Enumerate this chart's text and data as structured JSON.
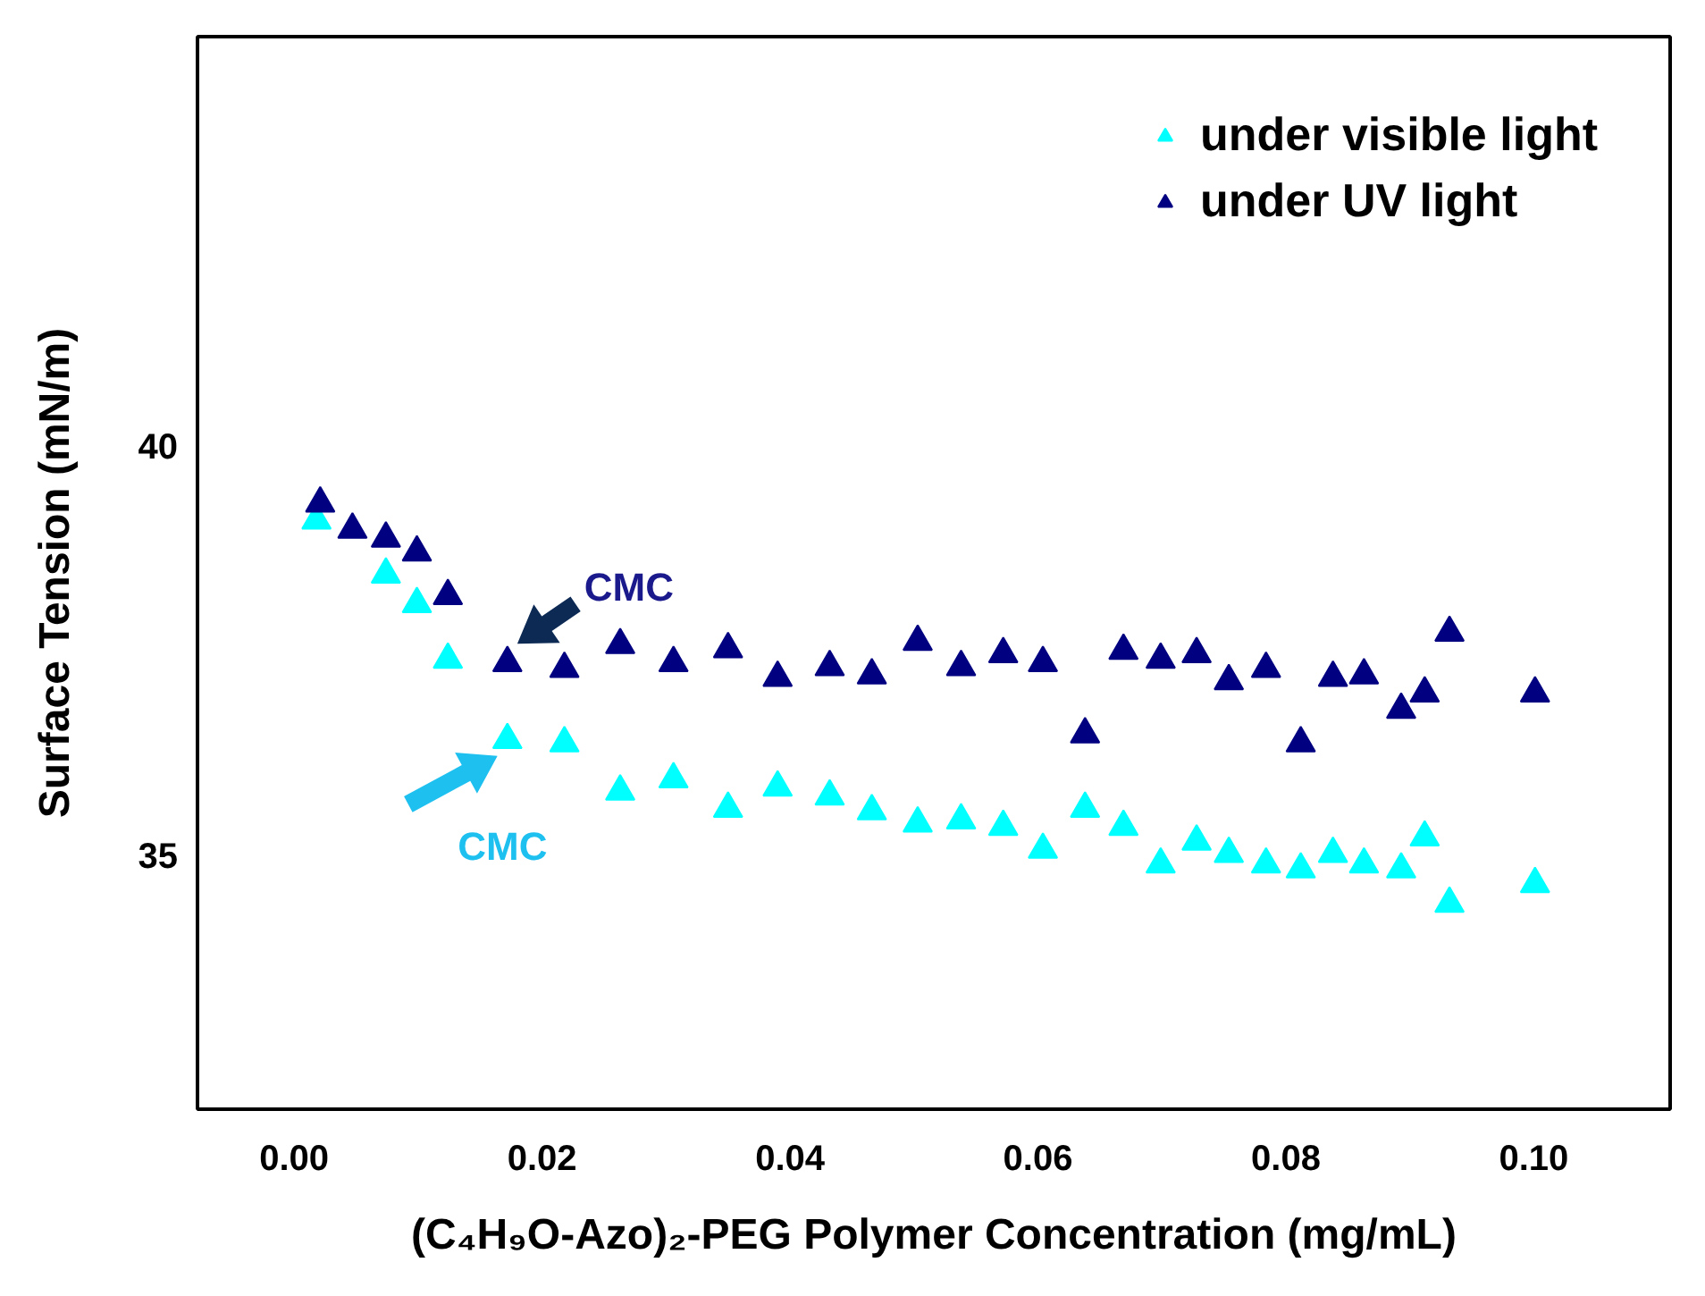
{
  "chart_data": {
    "type": "scatter",
    "xlabel": "(C₄H₉O-Azo)₂-PEG Polymer Concentration (mg/mL)",
    "ylabel": "Surface Tension (mN/m)",
    "xlim": [
      -0.0078,
      0.111
    ],
    "ylim": [
      31.9,
      45
    ],
    "xticks": [
      {
        "value": 0,
        "label": "0.00"
      },
      {
        "value": 0.02,
        "label": "0.02"
      },
      {
        "value": 0.04,
        "label": "0.04"
      },
      {
        "value": 0.06,
        "label": "0.06"
      },
      {
        "value": 0.08,
        "label": "0.08"
      },
      {
        "value": 0.1,
        "label": "0.10"
      }
    ],
    "yticks": [
      35,
      40
    ],
    "grid": false,
    "legend": "top right",
    "marker": "triangle",
    "series": [
      {
        "name": "under visible light",
        "color": "#00ffff",
        "x": [
          0.0018,
          0.0047,
          0.0074,
          0.0099,
          0.0124,
          0.0172,
          0.0218,
          0.0263,
          0.0306,
          0.035,
          0.039,
          0.0432,
          0.0466,
          0.0503,
          0.0538,
          0.0572,
          0.0604,
          0.0638,
          0.0669,
          0.0699,
          0.0728,
          0.0754,
          0.0784,
          0.0812,
          0.0838,
          0.0863,
          0.0893,
          0.0912,
          0.0932,
          0.1001
        ],
        "values": [
          39.09,
          null,
          38.43,
          38.07,
          37.39,
          36.41,
          36.37,
          35.78,
          35.93,
          35.57,
          35.83,
          35.72,
          35.54,
          35.39,
          35.43,
          35.35,
          35.07,
          35.57,
          35.35,
          34.89,
          35.17,
          35.02,
          34.89,
          34.83,
          35.02,
          34.89,
          34.83,
          35.22,
          34.41,
          34.65
        ]
      },
      {
        "name": "under UV light",
        "color": "#000080",
        "x": [
          0.0021,
          0.0047,
          0.0074,
          0.0099,
          0.0124,
          0.0172,
          0.0218,
          0.0263,
          0.0306,
          0.035,
          0.039,
          0.0432,
          0.0466,
          0.0503,
          0.0538,
          0.0572,
          0.0604,
          0.0638,
          0.0669,
          0.0699,
          0.0728,
          0.0754,
          0.0784,
          0.0812,
          0.0838,
          0.0863,
          0.0893,
          0.0912,
          0.0932,
          0.1001
        ],
        "values": [
          39.3,
          38.98,
          38.87,
          38.7,
          38.17,
          37.35,
          37.28,
          37.57,
          37.35,
          37.52,
          37.17,
          37.3,
          37.2,
          37.61,
          37.3,
          37.46,
          37.35,
          36.48,
          37.5,
          37.39,
          37.46,
          37.13,
          37.28,
          36.37,
          37.17,
          37.2,
          36.78,
          36.98,
          37.72,
          36.98
        ]
      }
    ],
    "annotations": [
      {
        "text": "CMC",
        "x": 0.0172,
        "y": 37.35
      },
      {
        "text": "CMC",
        "x": 0.0172,
        "y": 36.41
      }
    ]
  }
}
